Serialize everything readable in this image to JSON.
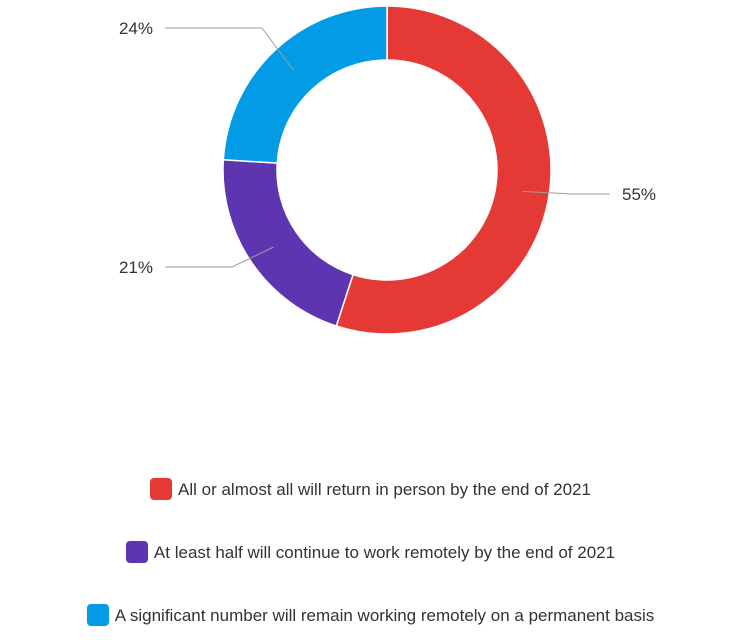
{
  "chart_data": {
    "type": "pie",
    "donut": true,
    "title": "",
    "slices": [
      {
        "label": "All or almost all will return in person by the end of 2021",
        "value": 55,
        "display": "55%",
        "color": "#e53935"
      },
      {
        "label": "At least half will continue to work remotely by the end of 2021",
        "value": 21,
        "display": "21%",
        "color": "#5e35b1"
      },
      {
        "label": "A significant number will remain working remotely on a permanent basis",
        "value": 24,
        "display": "24%",
        "color": "#039be5"
      }
    ],
    "legend_position": "bottom"
  }
}
